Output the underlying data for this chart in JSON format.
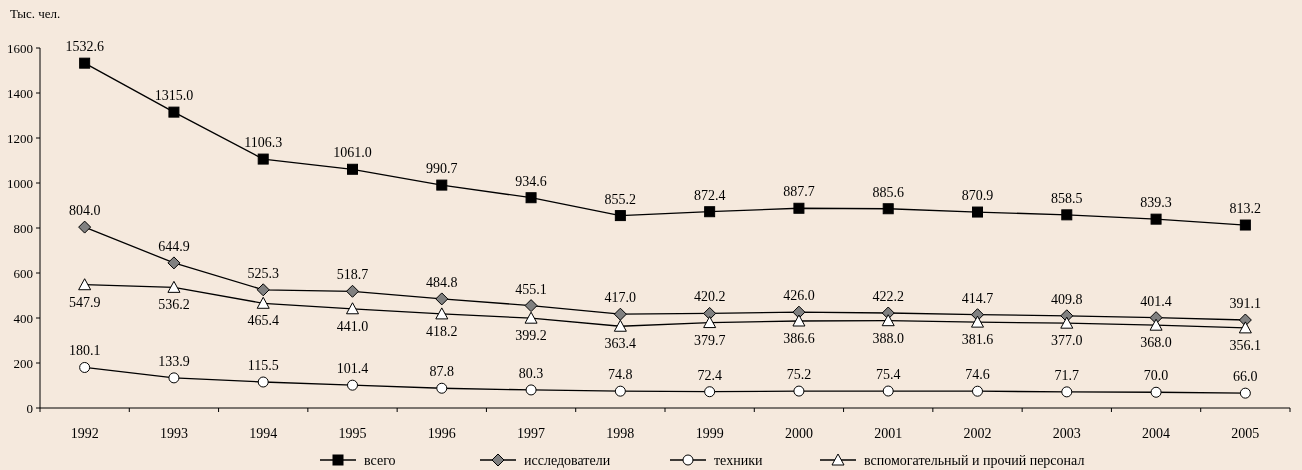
{
  "chart_data": {
    "type": "line",
    "ylabel": "Тыс. чел.",
    "categories": [
      "1992",
      "1993",
      "1994",
      "1995",
      "1996",
      "1997",
      "1998",
      "1999",
      "2000",
      "2001",
      "2002",
      "2003",
      "2004",
      "2005"
    ],
    "ylim": [
      0,
      1600
    ],
    "yticks": [
      0,
      200,
      400,
      600,
      800,
      1000,
      1200,
      1400,
      1600
    ],
    "grid": false,
    "legend": "bottom",
    "line_style": "solid",
    "series": [
      {
        "name": "всего",
        "color": "#000000",
        "marker": "square",
        "values": [
          1532.6,
          1315.0,
          1106.3,
          1061.0,
          990.7,
          934.6,
          855.2,
          872.4,
          887.7,
          885.6,
          870.9,
          858.5,
          839.3,
          813.2
        ],
        "value_labels": [
          "1532.6",
          "1315.0",
          "1106.3",
          "1061.0",
          "990.7",
          "934.6",
          "855.2",
          "872.4",
          "887.7",
          "885.6",
          "870.9",
          "858.5",
          "839.3",
          "813.2"
        ]
      },
      {
        "name": "исследователи",
        "color": "#808080",
        "marker": "diamond",
        "values": [
          804.0,
          644.9,
          525.3,
          518.7,
          484.8,
          455.1,
          417.0,
          420.2,
          426.0,
          422.2,
          414.7,
          409.8,
          401.4,
          391.1
        ],
        "value_labels": [
          "804.0",
          "644.9",
          "525.3",
          "518.7",
          "484.8",
          "455.1",
          "417.0",
          "420.2",
          "426.0",
          "422.2",
          "414.7",
          "409.8",
          "401.4",
          "391.1"
        ]
      },
      {
        "name": "техники",
        "color": "#ffffff",
        "marker": "circle",
        "values": [
          180.1,
          133.9,
          115.5,
          101.4,
          87.8,
          80.3,
          74.8,
          72.4,
          75.2,
          75.4,
          74.6,
          71.7,
          70.0,
          66.0
        ],
        "value_labels": [
          "180.1",
          "133.9",
          "115.5",
          "101.4",
          "87.8",
          "80.3",
          "74.8",
          "72.4",
          "75.2",
          "75.4",
          "74.6",
          "71.7",
          "70.0",
          "66.0"
        ]
      },
      {
        "name": "вспомогательный и прочий персонал",
        "color": "#ffffff",
        "marker": "triangle",
        "values": [
          547.9,
          536.2,
          465.4,
          441.0,
          418.2,
          399.2,
          363.4,
          379.7,
          386.6,
          388.0,
          381.6,
          377.0,
          368.0,
          356.1
        ],
        "value_labels": [
          "547.9",
          "536.2",
          "465.4",
          "441.0",
          "418.2",
          "399.2",
          "363.4",
          "379.7",
          "386.6",
          "388.0",
          "381.6",
          "377.0",
          "368.0",
          "356.1"
        ]
      }
    ]
  }
}
